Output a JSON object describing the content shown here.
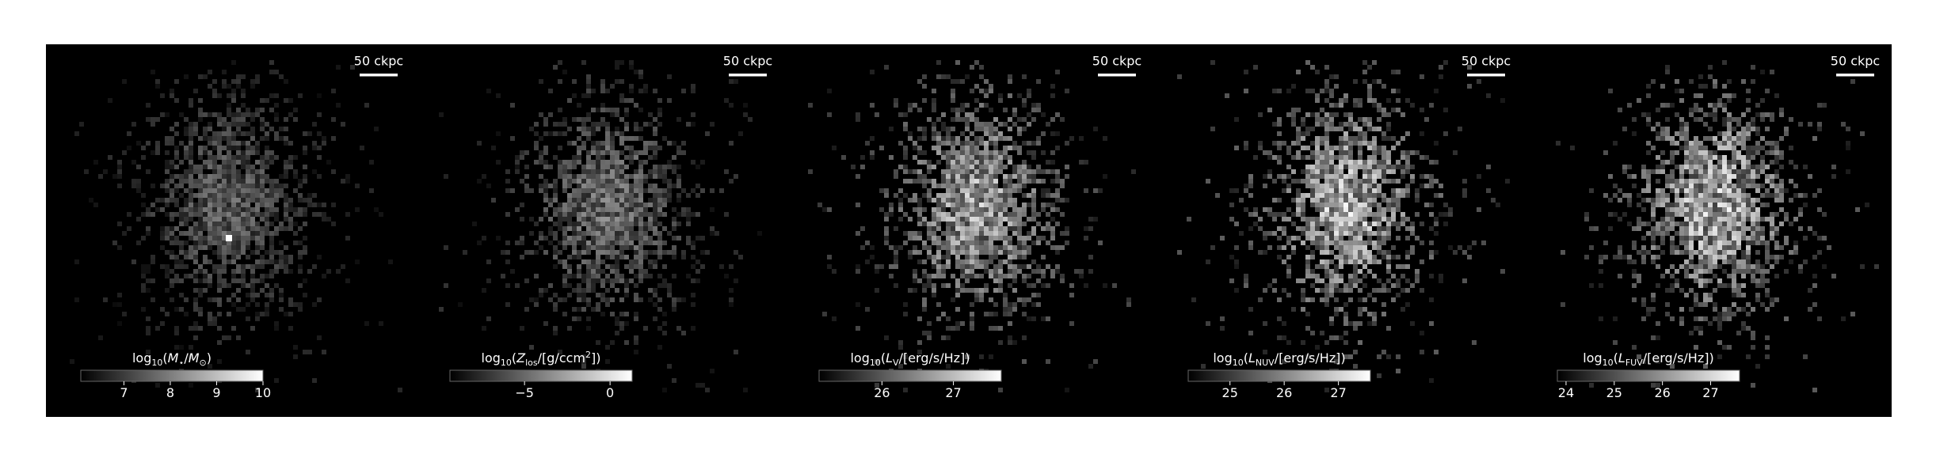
{
  "chart_data": [
    {
      "type": "image",
      "scalebar": "50 ckpc",
      "colorbar": {
        "label_parts": [
          {
            "text": "log"
          },
          {
            "text": "10",
            "sub": true
          },
          {
            "text": "("
          },
          {
            "text": "M",
            "italic": true
          },
          {
            "text": "⋆",
            "sub": true
          },
          {
            "text": "/"
          },
          {
            "text": "M",
            "italic": true
          },
          {
            "text": "⊙",
            "sub": true
          },
          {
            "text": ")"
          }
        ],
        "lim": [
          6.07,
          10
        ],
        "ticks": [
          7,
          8,
          9,
          10
        ]
      }
    },
    {
      "type": "image",
      "scalebar": "50 ckpc",
      "colorbar": {
        "label_parts": [
          {
            "text": "log"
          },
          {
            "text": "10",
            "sub": true
          },
          {
            "text": "("
          },
          {
            "text": "Z",
            "italic": true
          },
          {
            "text": "los",
            "sub": true
          },
          {
            "text": "/[g/ccm"
          },
          {
            "text": "2",
            "sup": true
          },
          {
            "text": "])"
          }
        ],
        "lim": [
          -9.36,
          1.29
        ],
        "ticks": [
          {
            "value": -5,
            "label": "−5"
          },
          0
        ]
      }
    },
    {
      "type": "image",
      "scalebar": "50 ckpc",
      "colorbar": {
        "label_parts": [
          {
            "text": "log"
          },
          {
            "text": "10",
            "sub": true
          },
          {
            "text": "("
          },
          {
            "text": "L",
            "italic": true
          },
          {
            "text": "V",
            "sub": true
          },
          {
            "text": "/[erg/s/Hz])"
          }
        ],
        "lim": [
          25.12,
          27.67
        ],
        "ticks": [
          26,
          27
        ]
      }
    },
    {
      "type": "image",
      "scalebar": "50 ckpc",
      "colorbar": {
        "label_parts": [
          {
            "text": "log"
          },
          {
            "text": "10",
            "sub": true
          },
          {
            "text": "("
          },
          {
            "text": "L",
            "italic": true
          },
          {
            "text": "NUV",
            "sub": true
          },
          {
            "text": "/[erg/s/Hz])"
          }
        ],
        "lim": [
          24.23,
          27.59
        ],
        "ticks": [
          25,
          26,
          27
        ]
      }
    },
    {
      "type": "image",
      "scalebar": "50 ckpc",
      "colorbar": {
        "label_parts": [
          {
            "text": "log"
          },
          {
            "text": "10",
            "sub": true
          },
          {
            "text": "("
          },
          {
            "text": "L",
            "italic": true
          },
          {
            "text": "FUV",
            "sub": true
          },
          {
            "text": "/[erg/s/Hz])"
          }
        ],
        "lim": [
          23.82,
          27.6
        ],
        "ticks": [
          24,
          25,
          26,
          27
        ]
      }
    }
  ]
}
